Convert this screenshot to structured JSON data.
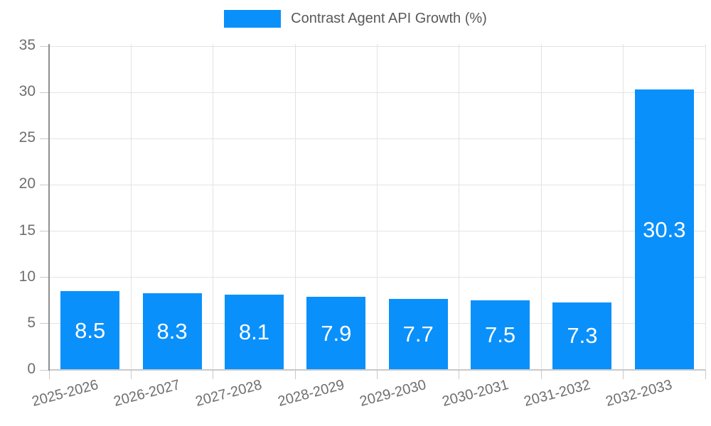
{
  "chart_data": {
    "type": "bar",
    "title": "",
    "legend": {
      "position": "top",
      "label": "Contrast Agent API Growth (%)"
    },
    "categories": [
      "2025-2026",
      "2026-2027",
      "2027-2028",
      "2028-2029",
      "2029-2030",
      "2030-2031",
      "2031-2032",
      "2032-2033"
    ],
    "series": [
      {
        "name": "Contrast Agent API Growth (%)",
        "values": [
          8.5,
          8.3,
          8.1,
          7.9,
          7.7,
          7.5,
          7.3,
          30.3
        ]
      }
    ],
    "value_label_decimals": 1,
    "xlabel": "",
    "ylabel": "",
    "ylim": [
      0,
      35
    ],
    "yticks": [
      0,
      5,
      10,
      15,
      20,
      25,
      30,
      35
    ],
    "grid": true,
    "x_label_rotation_deg": -15,
    "colors": {
      "bar": "#0a90fb",
      "value_label": "#ffffff",
      "axis_text": "#6e6e6e",
      "legend_text": "#595959",
      "grid_line": "#e3e3e3",
      "x_axis_line": "#c9c9c9",
      "y_axis_line": "#8f8f8f",
      "tick_line": "#c9c9c9"
    }
  }
}
